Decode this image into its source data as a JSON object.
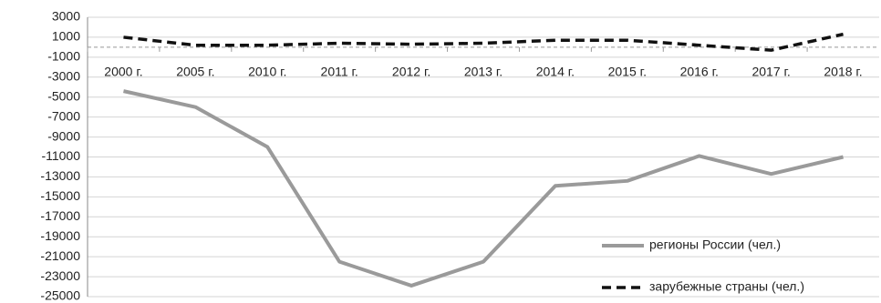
{
  "chart_data": {
    "type": "line",
    "categories": [
      "2000 г.",
      "2005 г.",
      "2010 г.",
      "2011 г.",
      "2012 г.",
      "2013 г.",
      "2014 г.",
      "2015 г.",
      "2016 г.",
      "2017 г.",
      "2018 г."
    ],
    "series": [
      {
        "name": "регионы России (чел.)",
        "color": "#9a9a9a",
        "values": [
          -4400,
          -6000,
          -10000,
          -21500,
          -23900,
          -21500,
          -13900,
          -13400,
          -10900,
          -12700,
          -11000
        ]
      },
      {
        "name": "зарубежные страны (чел.)",
        "color": "#111111",
        "dashed": true,
        "values": [
          1000,
          200,
          200,
          400,
          300,
          400,
          700,
          700,
          200,
          -300,
          1300
        ]
      }
    ],
    "ylim": [
      -25000,
      3000
    ],
    "yticks": [
      3000,
      1000,
      -1000,
      -3000,
      -5000,
      -7000,
      -9000,
      -11000,
      -13000,
      -15000,
      -17000,
      -19000,
      -21000,
      -23000,
      -25000
    ],
    "grid": true,
    "legend": "lower right"
  }
}
